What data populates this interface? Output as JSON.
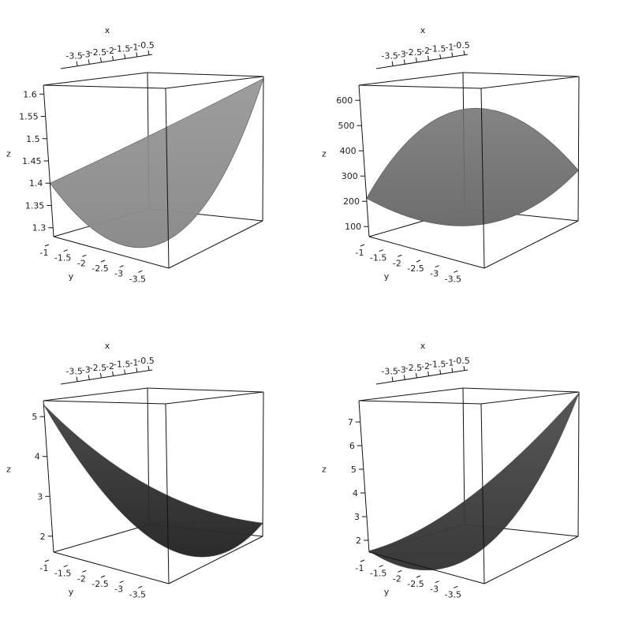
{
  "chart_data": [
    {
      "type": "surface3d",
      "xlabel": "x",
      "ylabel": "y",
      "zlabel": "z",
      "x_ticks": [
        "-3.5",
        "-3",
        "-2.5",
        "-2",
        "-1.5",
        "-1",
        "-0.5"
      ],
      "y_ticks": [
        "-1",
        "-1.5",
        "-2",
        "-2.5",
        "-3",
        "-3.5"
      ],
      "z_ticks": [
        "1.3",
        "1.35",
        "1.4",
        "1.45",
        "1.5",
        "1.55",
        "1.6"
      ],
      "xlim": [
        -4,
        -0.5
      ],
      "ylim": [
        -4,
        -1
      ],
      "zlim": [
        1.28,
        1.62
      ],
      "corners": {
        "front_left": 1.4,
        "front_right": 1.615,
        "bottom": 1.23,
        "back": 1.46
      },
      "shade": "#8c8c8c"
    },
    {
      "type": "surface3d",
      "xlabel": "x",
      "ylabel": "y",
      "zlabel": "z",
      "x_ticks": [
        "-3.5",
        "-3",
        "-2.5",
        "-2",
        "-1.5",
        "-1",
        "-0.5"
      ],
      "y_ticks": [
        "-1",
        "-1.5",
        "-2",
        "-2.5",
        "-3",
        "-3.5"
      ],
      "z_ticks": [
        "100",
        "200",
        "300",
        "400",
        "500",
        "600"
      ],
      "xlim": [
        -4,
        -0.5
      ],
      "ylim": [
        -4,
        -1
      ],
      "zlim": [
        60,
        660
      ],
      "corners": {
        "front_left": 212,
        "front_right": 270,
        "bottom": 140,
        "back": 660
      },
      "shade": "#6e6e6e"
    },
    {
      "type": "surface3d",
      "xlabel": "x",
      "ylabel": "y",
      "zlabel": "z",
      "x_ticks": [
        "-3.5",
        "-3",
        "-2.5",
        "-2",
        "-1.5",
        "-1",
        "-0.5"
      ],
      "y_ticks": [
        "-1",
        "-1.5",
        "-2",
        "-2.5",
        "-3",
        "-3.5"
      ],
      "z_ticks": [
        "2",
        "3",
        "4",
        "5"
      ],
      "xlim": [
        -4,
        -0.5
      ],
      "ylim": [
        -4,
        -1
      ],
      "zlim": [
        1.6,
        5.4
      ],
      "corners": {
        "front_left": 5.3,
        "front_right": 1.95,
        "bottom": 1.55,
        "back": 2.35
      },
      "shade": "#2b2b2b"
    },
    {
      "type": "surface3d",
      "xlabel": "x",
      "ylabel": "y",
      "zlabel": "z",
      "x_ticks": [
        "-3.5",
        "-3",
        "-2.5",
        "-2",
        "-1.5",
        "-1",
        "-0.5"
      ],
      "y_ticks": [
        "-1",
        "-1.5",
        "-2",
        "-2.5",
        "-3",
        "-3.5"
      ],
      "z_ticks": [
        "2",
        "3",
        "4",
        "5",
        "6",
        "7"
      ],
      "xlim": [
        -4,
        -0.5
      ],
      "ylim": [
        -4,
        -1
      ],
      "zlim": [
        1.5,
        7.9
      ],
      "corners": {
        "front_left": 1.55,
        "front_right": 7.85,
        "bottom": 1.35,
        "back": 2.1
      },
      "shade": "#3a3a3a"
    }
  ]
}
